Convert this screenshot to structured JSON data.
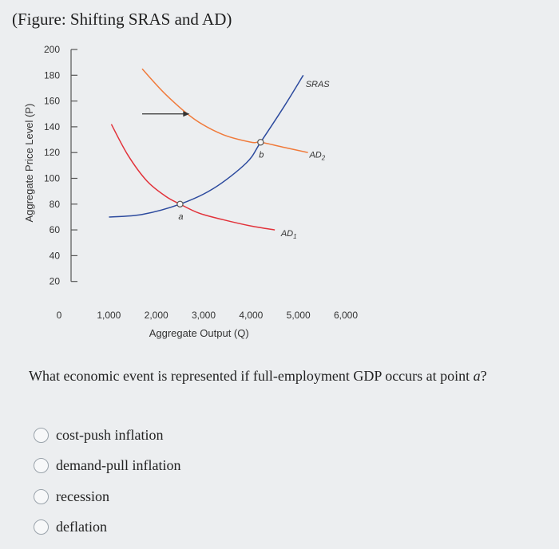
{
  "figure_title": "(Figure: Shifting SRAS and AD)",
  "chart_data": {
    "type": "line",
    "title": "(Figure: Shifting SRAS and AD)",
    "xlabel": "Aggregate Output (Q)",
    "ylabel": "Aggregate Price Level (P)",
    "xlim": [
      0,
      6000
    ],
    "ylim": [
      0,
      200
    ],
    "x_ticks": [
      {
        "value": 0,
        "label": "0"
      },
      {
        "value": 1000,
        "label": "1,000"
      },
      {
        "value": 2000,
        "label": "2,000"
      },
      {
        "value": 3000,
        "label": "3,000"
      },
      {
        "value": 4000,
        "label": "4,000"
      },
      {
        "value": 5000,
        "label": "5,000"
      },
      {
        "value": 6000,
        "label": "6,000"
      }
    ],
    "y_ticks": [
      {
        "value": 20,
        "label": "20"
      },
      {
        "value": 40,
        "label": "40"
      },
      {
        "value": 60,
        "label": "60"
      },
      {
        "value": 80,
        "label": "80"
      },
      {
        "value": 100,
        "label": "100"
      },
      {
        "value": 120,
        "label": "120"
      },
      {
        "value": 140,
        "label": "140"
      },
      {
        "value": 160,
        "label": "160"
      },
      {
        "value": 180,
        "label": "180"
      },
      {
        "value": 200,
        "label": "200"
      }
    ],
    "series": [
      {
        "name": "SRAS",
        "color": "#2c4a9e",
        "x": [
          800,
          1500,
          2300,
          3000,
          3700,
          4000,
          4500,
          4900
        ],
        "y": [
          70,
          72,
          80,
          92,
          112,
          128,
          156,
          180
        ]
      },
      {
        "name": "AD1",
        "color": "#e2323a",
        "x": [
          850,
          1200,
          1600,
          2000,
          2300,
          2700,
          3200,
          3800,
          4300
        ],
        "y": [
          142,
          118,
          98,
          86,
          80,
          73,
          68,
          63,
          60
        ]
      },
      {
        "name": "AD2",
        "color": "#f07a3a",
        "x": [
          1500,
          2000,
          2600,
          3200,
          3800,
          4000,
          4500,
          5000
        ],
        "y": [
          185,
          165,
          146,
          134,
          128,
          128,
          124,
          120
        ]
      }
    ],
    "labels": {
      "sras": "SRAS",
      "ad1": "AD",
      "ad1_sub": "1",
      "ad2": "AD",
      "ad2_sub": "2"
    },
    "points": [
      {
        "label": "a",
        "x": 2300,
        "y": 80
      },
      {
        "label": "b",
        "x": 4000,
        "y": 128
      }
    ],
    "arrow": {
      "from": [
        1500,
        150
      ],
      "to": [
        2500,
        150
      ]
    },
    "grid": false,
    "legend": "none"
  },
  "question": "What economic event is represented if full-employment GDP occurs at point a?",
  "options": [
    {
      "label": "cost-push inflation"
    },
    {
      "label": "demand-pull inflation"
    },
    {
      "label": "recession"
    },
    {
      "label": "deflation"
    }
  ]
}
